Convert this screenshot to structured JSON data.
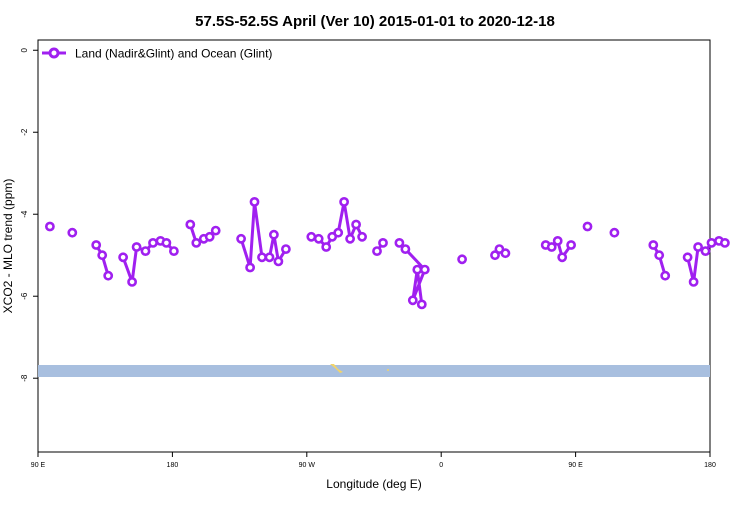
{
  "chart_data": {
    "type": "line",
    "title": "57.5S-52.5S April (Ver 10)   2015-01-01 to 2020-12-18",
    "xlabel": "Longitude (deg E)",
    "ylabel": "XCO2 - MLO trend (ppm)",
    "xlim": [
      90,
      540
    ],
    "ylim": [
      -9.8,
      0.25
    ],
    "x_ticks": [
      90,
      180,
      270,
      360,
      450,
      540
    ],
    "x_tick_labels": [
      "90 E",
      "180",
      "90 W",
      "0",
      "90 E",
      "180"
    ],
    "y_ticks": [
      0,
      -2,
      -4,
      -6,
      -8
    ],
    "y_tick_labels": [
      "0",
      "-2",
      "-4",
      "-6",
      "-8"
    ],
    "legend_position": "top-left",
    "colors": {
      "series": "#a020f0",
      "landmass": "#a8bfdf",
      "ice": "#f2d46a"
    },
    "series": [
      {
        "name": "Land (Nadir&Glint) and Ocean (Glint)",
        "segments": [
          [
            [
              98,
              -4.3
            ]
          ],
          [
            [
              113,
              -4.45
            ]
          ],
          [
            [
              129,
              -4.75
            ],
            [
              133,
              -5.0
            ],
            [
              137,
              -5.5
            ]
          ],
          [
            [
              147,
              -5.05
            ],
            [
              153,
              -5.65
            ],
            [
              156,
              -4.8
            ],
            [
              162,
              -4.9
            ],
            [
              167,
              -4.7
            ],
            [
              172,
              -4.65
            ],
            [
              176,
              -4.7
            ],
            [
              181,
              -4.9
            ]
          ],
          [
            [
              192,
              -4.25
            ],
            [
              196,
              -4.7
            ],
            [
              201,
              -4.6
            ],
            [
              205,
              -4.55
            ],
            [
              209,
              -4.4
            ]
          ],
          [
            [
              226,
              -4.6
            ],
            [
              232,
              -5.3
            ],
            [
              235,
              -3.7
            ],
            [
              240,
              -5.05
            ],
            [
              245,
              -5.05
            ],
            [
              248,
              -4.5
            ],
            [
              251,
              -5.15
            ],
            [
              256,
              -4.85
            ]
          ],
          [
            [
              273,
              -4.55
            ],
            [
              278,
              -4.6
            ],
            [
              283,
              -4.8
            ],
            [
              287,
              -4.55
            ],
            [
              291,
              -4.45
            ],
            [
              295,
              -3.7
            ],
            [
              299,
              -4.6
            ],
            [
              303,
              -4.25
            ],
            [
              307,
              -4.55
            ]
          ],
          [
            [
              317,
              -4.9
            ],
            [
              321,
              -4.7
            ]
          ],
          [
            [
              332,
              -4.7
            ],
            [
              336,
              -4.85
            ],
            [
              349,
              -5.35
            ],
            [
              341,
              -6.1
            ],
            [
              344,
              -5.35
            ],
            [
              347,
              -6.2
            ]
          ],
          [
            [
              374,
              -5.1
            ]
          ],
          [
            [
              396,
              -5.0
            ],
            [
              399,
              -4.85
            ],
            [
              403,
              -4.95
            ]
          ],
          [
            [
              430,
              -4.75
            ],
            [
              434,
              -4.8
            ],
            [
              438,
              -4.65
            ],
            [
              441,
              -5.05
            ],
            [
              447,
              -4.75
            ]
          ],
          [
            [
              458,
              -4.3
            ]
          ],
          [
            [
              476,
              -4.45
            ]
          ],
          [
            [
              502,
              -4.75
            ],
            [
              506,
              -5.0
            ],
            [
              510,
              -5.5
            ]
          ],
          [
            [
              525,
              -5.05
            ],
            [
              529,
              -5.65
            ],
            [
              532,
              -4.8
            ]
          ],
          [
            [
              537,
              -4.9
            ],
            [
              541,
              -4.7
            ],
            [
              546,
              -4.65
            ],
            [
              550,
              -4.7
            ]
          ]
        ]
      }
    ]
  }
}
